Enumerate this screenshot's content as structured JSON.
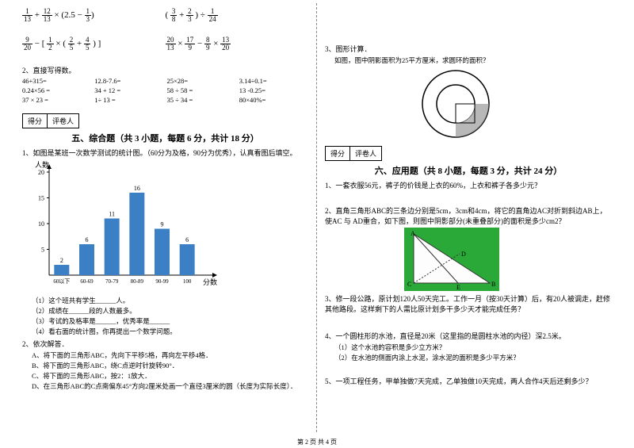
{
  "left": {
    "expr1a": "1/13 + 12/13 × (2.5 − 1/3)",
    "expr1b": "( 3/8 + 2/3 ) ÷ 1/24",
    "expr2a": "9/20 − [ 1/2 × ( 2/5 + 4/5 ) ]",
    "expr2b": "20/13 × 17/9 − 8/9 × 13/20",
    "sec2": "2、直接写得数。",
    "calc": [
      "46+315=",
      "12.8-7.6=",
      "25×28=",
      "3.14÷0.1=",
      "0.24×56 =",
      "34 + 12 =",
      "58 ÷ 58 =",
      "13 -0.25=",
      "37 × 23 =",
      "1÷ 13 =",
      "35 ÷ 34 =",
      "80×40%="
    ],
    "score1": "得分",
    "score2": "评卷人",
    "title5": "五、综合题（共 3 小题，每题 6 分，共计 18 分）",
    "q1": "1、如图是某班一次数学测试的统计图。（60分为及格，90分为优秀），认真看图后填空。",
    "chart": {
      "ylabel": "人数",
      "xlabel": "分数",
      "ymax": 20,
      "yticks": [
        5,
        10,
        15,
        20
      ],
      "cats": [
        "60以下",
        "60-69",
        "70-79",
        "80-89",
        "90-99",
        "100"
      ],
      "vals": [
        2,
        6,
        11,
        16,
        9,
        6
      ],
      "bar_color": "#3b7fc4",
      "axis_color": "#000000"
    },
    "s1": "（1）这个班共有学生______人。",
    "s2": "（2）成绩在______段的人数最多。",
    "s3": "（3）考试的及格率是______，优秀率是______",
    "s4": "（4）看右面的统计图，你再提出一个数学问题。",
    "q2": "2、依次解答．",
    "a": "A、将下面的三角形ABC，先向下平移5格，再向左平移4格．",
    "b": "B、将下面的三角形ABC，绕C点逆时针旋转90°．",
    "c": "C、将下面的三角形ABC，按2：1放大．",
    "d": "D、在三角形ABC的C点南偏东45°方向2厘米处画一个直径3厘米的圆（长度为实际长度）．"
  },
  "right": {
    "q3": "3、图形计算．",
    "q3b": "如图，图中阴影面积为25平方厘米，求圆环的面积？",
    "score1": "得分",
    "score2": "评卷人",
    "title6": "六、应用题（共 8 小题，每题 3 分，共计 24 分）",
    "r1": "1、一套衣服56元，裤子的价钱是上衣的60%，上衣和裤子各多少元？",
    "r2": "2、直角三角形ABC的三条边分别是5cm，3cm和4cm，将它的直角边AC对折到斜边AB上，使AC 与 AD重合，如下图，则图中阴影部分(未重叠部分)的面积是多少cm2？",
    "r3": "3、修一段公路，原计划120人50天完工。工作一月（按30天计算）后，有20人被调走，赶修其他路段。这样剩下的人需比原计划多干多少天才能完成任务？",
    "r4": "4、一个圆柱形的水池，直径是20米（这里指的是圆柱水池的内径）深2.5米。",
    "r4a": "（1）这个水池的容积是多少立方米？",
    "r4b": "（2）在水池的侧面内涂上水泥，涂水泥的面积是多少平方米？",
    "r5": "5、一项工程任务，甲单独做7天完成，乙单独做10天完成，两人合作4天后还剩多少？",
    "tri": {
      "labels": {
        "A": "A",
        "B": "B",
        "C": "C",
        "D": "D",
        "E": "E"
      }
    }
  },
  "footer": "第 2 页 共 4 页"
}
